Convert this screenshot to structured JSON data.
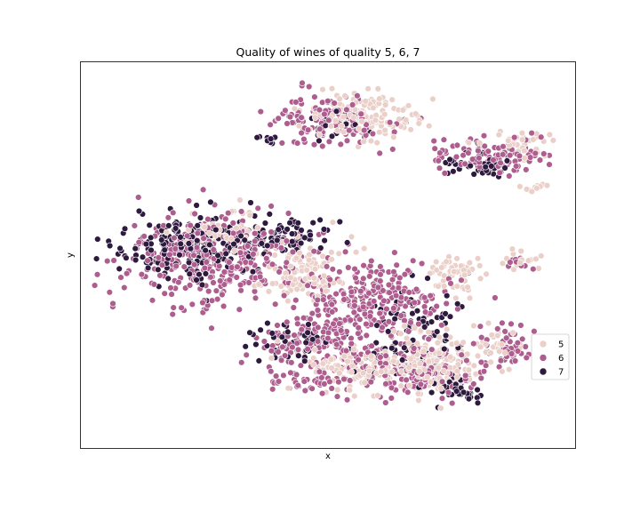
{
  "chart_data": {
    "type": "scatter",
    "title": "Quality of wines of quality 5, 6, 7",
    "xlabel": "x",
    "ylabel": "y",
    "xlim": [
      0,
      100
    ],
    "ylim": [
      0,
      100
    ],
    "grid": false,
    "ticks_visible": false,
    "legend": {
      "placement": "center-right",
      "entries": [
        {
          "label": "5",
          "color": "#ebd0ca"
        },
        {
          "label": "6",
          "color": "#ad5e8e"
        },
        {
          "label": "7",
          "color": "#2e1a3e"
        }
      ]
    },
    "clusters": [
      {
        "label": "5",
        "cx": 57.5,
        "cy": 86.0,
        "rx": 10.0,
        "ry": 5.5,
        "n": 150
      },
      {
        "label": "6",
        "cx": 50.0,
        "cy": 85.0,
        "rx": 11.0,
        "ry": 6.0,
        "n": 140
      },
      {
        "label": "7",
        "cx": 51.0,
        "cy": 84.0,
        "rx": 8.0,
        "ry": 5.0,
        "n": 22
      },
      {
        "label": "7",
        "cx": 38.0,
        "cy": 80.0,
        "rx": 2.5,
        "ry": 1.5,
        "n": 8
      },
      {
        "label": "6",
        "cx": 82.5,
        "cy": 76.0,
        "rx": 10.0,
        "ry": 4.5,
        "n": 110
      },
      {
        "label": "7",
        "cx": 80.5,
        "cy": 73.5,
        "rx": 5.5,
        "ry": 3.0,
        "n": 45
      },
      {
        "label": "5",
        "cx": 88.0,
        "cy": 79.0,
        "rx": 6.0,
        "ry": 3.5,
        "n": 40
      },
      {
        "label": "5",
        "cx": 93.0,
        "cy": 67.0,
        "rx": 3.0,
        "ry": 1.5,
        "n": 10
      },
      {
        "label": "5",
        "cx": 90.0,
        "cy": 48.0,
        "rx": 3.5,
        "ry": 2.5,
        "n": 14
      },
      {
        "label": "6",
        "cx": 89.0,
        "cy": 48.5,
        "rx": 3.0,
        "ry": 2.0,
        "n": 10
      },
      {
        "label": "6",
        "cx": 27.0,
        "cy": 49.0,
        "rx": 18.0,
        "ry": 10.5,
        "n": 330
      },
      {
        "label": "7",
        "cx": 21.0,
        "cy": 52.0,
        "rx": 14.5,
        "ry": 8.0,
        "n": 200
      },
      {
        "label": "5",
        "cx": 45.0,
        "cy": 46.0,
        "rx": 9.0,
        "ry": 7.0,
        "n": 120
      },
      {
        "label": "7",
        "cx": 41.0,
        "cy": 55.0,
        "rx": 8.5,
        "ry": 4.0,
        "n": 80
      },
      {
        "label": "5",
        "cx": 28.0,
        "cy": 56.0,
        "rx": 10.0,
        "ry": 5.0,
        "n": 50
      },
      {
        "label": "6",
        "cx": 58.0,
        "cy": 38.0,
        "rx": 15.0,
        "ry": 10.0,
        "n": 280
      },
      {
        "label": "5",
        "cx": 70.0,
        "cy": 22.0,
        "rx": 9.0,
        "ry": 7.0,
        "n": 200
      },
      {
        "label": "7",
        "cx": 67.0,
        "cy": 30.0,
        "rx": 10.0,
        "ry": 8.5,
        "n": 70
      },
      {
        "label": "6",
        "cx": 69.0,
        "cy": 20.0,
        "rx": 12.0,
        "ry": 6.5,
        "n": 170
      },
      {
        "label": "7",
        "cx": 76.0,
        "cy": 15.0,
        "rx": 4.5,
        "ry": 3.5,
        "n": 40
      },
      {
        "label": "5",
        "cx": 76.0,
        "cy": 45.0,
        "rx": 6.0,
        "ry": 4.0,
        "n": 55
      },
      {
        "label": "7",
        "cx": 42.0,
        "cy": 28.0,
        "rx": 9.0,
        "ry": 5.0,
        "n": 45
      },
      {
        "label": "6",
        "cx": 48.0,
        "cy": 27.0,
        "rx": 12.0,
        "ry": 6.0,
        "n": 120
      },
      {
        "label": "5",
        "cx": 53.0,
        "cy": 20.0,
        "rx": 9.0,
        "ry": 5.5,
        "n": 90
      },
      {
        "label": "6",
        "cx": 47.0,
        "cy": 17.0,
        "rx": 8.0,
        "ry": 3.0,
        "n": 45
      },
      {
        "label": "6",
        "cx": 87.0,
        "cy": 27.0,
        "rx": 4.0,
        "ry": 5.5,
        "n": 45
      },
      {
        "label": "5",
        "cx": 84.0,
        "cy": 28.0,
        "rx": 3.5,
        "ry": 5.0,
        "n": 30
      }
    ]
  }
}
